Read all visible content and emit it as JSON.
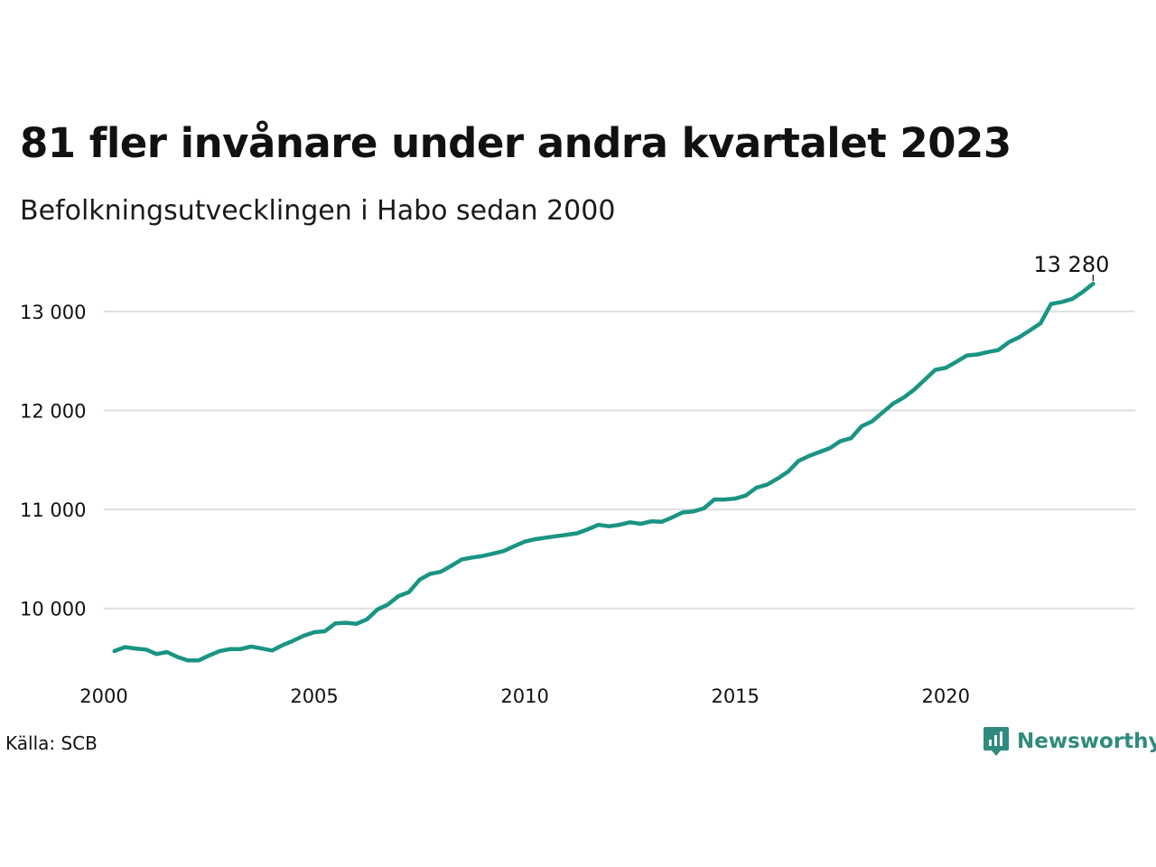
{
  "title": "81 fler invånare under andra kvartalet 2023",
  "subtitle": "Befolkningsutvecklingen i Habo sedan 2000",
  "source": "Källa: SCB",
  "brand": {
    "name": "Newsworthy",
    "icon": "newsworthy-logo-icon",
    "color": "#2e8b7e"
  },
  "chart_data": {
    "type": "line",
    "xlabel": "",
    "ylabel": "",
    "xlim": [
      2000,
      2024.5
    ],
    "ylim": [
      9350,
      13500
    ],
    "grid": "horizontal",
    "line_color": "#1a9483",
    "x_ticks": [
      {
        "value": 2000,
        "label": "2000"
      },
      {
        "value": 2005,
        "label": "2005"
      },
      {
        "value": 2010,
        "label": "2010"
      },
      {
        "value": 2015,
        "label": "2015"
      },
      {
        "value": 2020,
        "label": "2020"
      }
    ],
    "y_ticks": [
      {
        "value": 10000,
        "label": "10 000"
      },
      {
        "value": 11000,
        "label": "11 000"
      },
      {
        "value": 12000,
        "label": "12 000"
      },
      {
        "value": 13000,
        "label": "13 000"
      }
    ],
    "annotation": {
      "x": 2023.5,
      "y": 13280,
      "label": "13 280"
    },
    "series": [
      {
        "x": [
          2000.25,
          2000.5,
          2000.75,
          2001,
          2001.25,
          2001.5,
          2001.75,
          2002,
          2002.25,
          2002.5,
          2002.75,
          2003,
          2003.25,
          2003.5,
          2003.75,
          2004,
          2004.25,
          2004.5,
          2004.75,
          2005,
          2005.25,
          2005.5,
          2005.75,
          2006,
          2006.25,
          2006.5,
          2006.75,
          2007,
          2007.25,
          2007.5,
          2007.75,
          2008,
          2008.25,
          2008.5,
          2008.75,
          2009,
          2009.25,
          2009.5,
          2009.75,
          2010,
          2010.25,
          2010.5,
          2010.75,
          2011,
          2011.25,
          2011.5,
          2011.75,
          2012,
          2012.25,
          2012.5,
          2012.75,
          2013,
          2013.25,
          2013.5,
          2013.75,
          2014,
          2014.25,
          2014.5,
          2014.75,
          2015,
          2015.25,
          2015.5,
          2015.75,
          2016,
          2016.25,
          2016.5,
          2016.75,
          2017,
          2017.25,
          2017.5,
          2017.75,
          2018,
          2018.25,
          2018.5,
          2018.75,
          2019,
          2019.25,
          2019.5,
          2019.75,
          2020,
          2020.25,
          2020.5,
          2020.75,
          2021,
          2021.25,
          2021.5,
          2021.75,
          2022,
          2022.25,
          2022.5,
          2022.75,
          2023,
          2023.25,
          2023.5
        ],
        "y": [
          9570,
          9610,
          9595,
          9585,
          9540,
          9560,
          9510,
          9475,
          9475,
          9525,
          9570,
          9590,
          9590,
          9615,
          9595,
          9575,
          9630,
          9675,
          9725,
          9760,
          9770,
          9850,
          9855,
          9845,
          9890,
          9990,
          10040,
          10125,
          10165,
          10290,
          10350,
          10370,
          10430,
          10495,
          10515,
          10530,
          10555,
          10580,
          10630,
          10675,
          10700,
          10715,
          10730,
          10745,
          10760,
          10800,
          10845,
          10830,
          10845,
          10870,
          10855,
          10880,
          10875,
          10920,
          10970,
          10980,
          11010,
          11100,
          11100,
          11110,
          11140,
          11220,
          11250,
          11310,
          11380,
          11490,
          11540,
          11580,
          11620,
          11690,
          11720,
          11840,
          11890,
          11980,
          12070,
          12130,
          12210,
          12310,
          12410,
          12430,
          12490,
          12555,
          12565,
          12590,
          12610,
          12690,
          12740,
          12810,
          12880,
          13075,
          13095,
          13125,
          13195,
          13280
        ]
      }
    ]
  }
}
